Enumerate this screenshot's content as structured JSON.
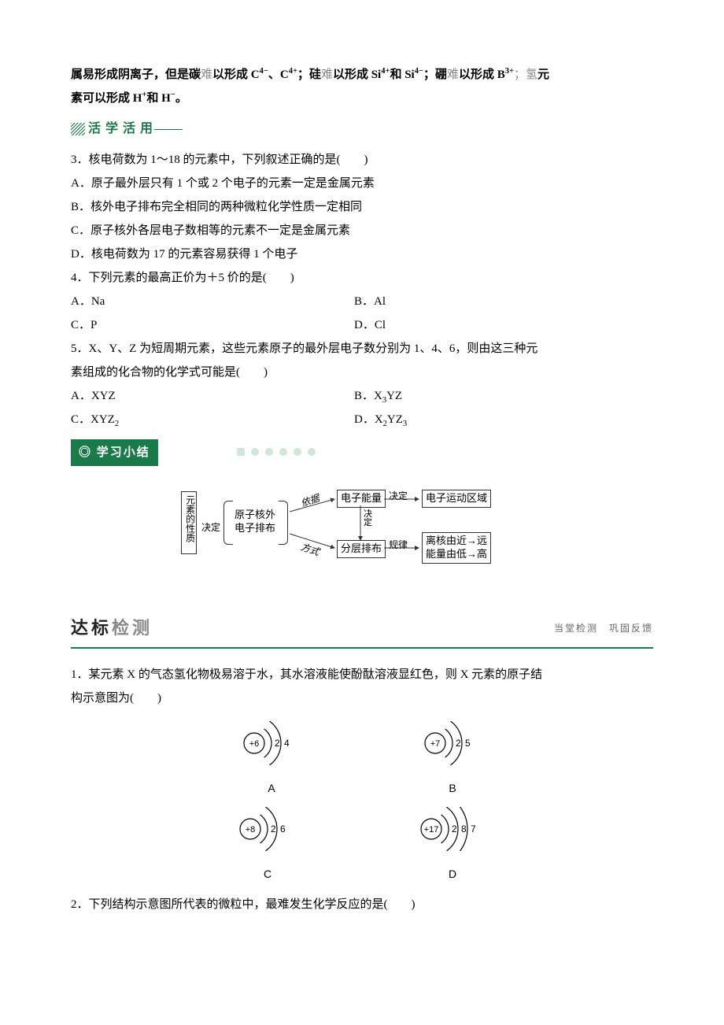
{
  "intro_parts": {
    "p1_bold": "属易形成阴离子，但是碳",
    "p1_gray": "难",
    "p2_bold": "以形成 C",
    "p2_sup": "4−",
    "p3_bold": "、C",
    "p3_sup": "4+",
    "p4_bold": "；硅",
    "p4_gray": "难",
    "p5_bold": "以形成 Si",
    "p5_sup": "4+",
    "p6_bold": "和 Si",
    "p6_sup": "4−",
    "p7_bold": "；硼",
    "p7_gray": "难",
    "p8_bold": "以形成 B",
    "p8_sup": "3+",
    "p9_gray": "；氢",
    "p9_bold": "元"
  },
  "intro_line2": {
    "a": "素可以形成 H",
    "a_sup": "+",
    "b": "和 H",
    "b_sup": "−",
    "tail": "。"
  },
  "section_title": "活学活用",
  "q3": "3．核电荷数为 1～18 的元素中，下列叙述正确的是(　　)",
  "q3a": "A．原子最外层只有 1 个或 2 个电子的元素一定是金属元素",
  "q3b": "B．核外电子排布完全相同的两种微粒化学性质一定相同",
  "q3c": "C．原子核外各层电子数相等的元素不一定是金属元素",
  "q3d": "D．核电荷数为 17 的元素容易获得 1 个电子",
  "q4": "4．下列元素的最高正价为＋5 价的是(　　)",
  "q4a": "A．Na",
  "q4b": "B．Al",
  "q4c": "C．P",
  "q4d": "D．Cl",
  "q5a": "5．X、Y、Z 为短周期元素，这些元素原子的最外层电子数分别为 1、4、6，则由这三种元",
  "q5b": "素组成的化合物的化学式可能是(　　)",
  "q5oa": "A．XYZ",
  "q5ob_pref": "B．X",
  "q5ob_sub": "3",
  "q5ob_suf": "YZ",
  "q5oc_pref": "C．XYZ",
  "q5oc_sub": "2",
  "q5od_pref": "D．X",
  "q5od_sub1": "2",
  "q5od_mid": "YZ",
  "q5od_sub2": "3",
  "summary_label": "◎ 学习小结",
  "diagram": {
    "left": "元素的性质",
    "n1_a": "原子核外",
    "n1_b": "电子排布",
    "n2": "电子能量",
    "n3": "分层排布",
    "r1": "电子运动区域",
    "r2_a": "离核由近→远",
    "r2_b": "能量由低→高",
    "e1": "决定",
    "e2": "依据",
    "e3": "方式",
    "e4": "决定",
    "e5": "决定",
    "e6": "规律"
  },
  "dabiao": {
    "main1": "达标",
    "main2": "检测",
    "sub": "当堂检测　巩固反馈"
  },
  "q1a": "1．某元素 X 的气态氢化物极易溶于水，其水溶液能使酚酞溶液显红色，则 X 元素的原子结",
  "q1b": "构示意图为(　　)",
  "atoms": {
    "A": {
      "nucleus": "+6",
      "shells": [
        "2",
        "4"
      ]
    },
    "B": {
      "nucleus": "+7",
      "shells": [
        "2",
        "5"
      ]
    },
    "C": {
      "nucleus": "+8",
      "shells": [
        "2",
        "6"
      ]
    },
    "D": {
      "nucleus": "+17",
      "shells": [
        "2",
        "8",
        "7"
      ]
    }
  },
  "q2": "2．下列结构示意图所代表的微粒中，最难发生化学反应的是(　　)"
}
